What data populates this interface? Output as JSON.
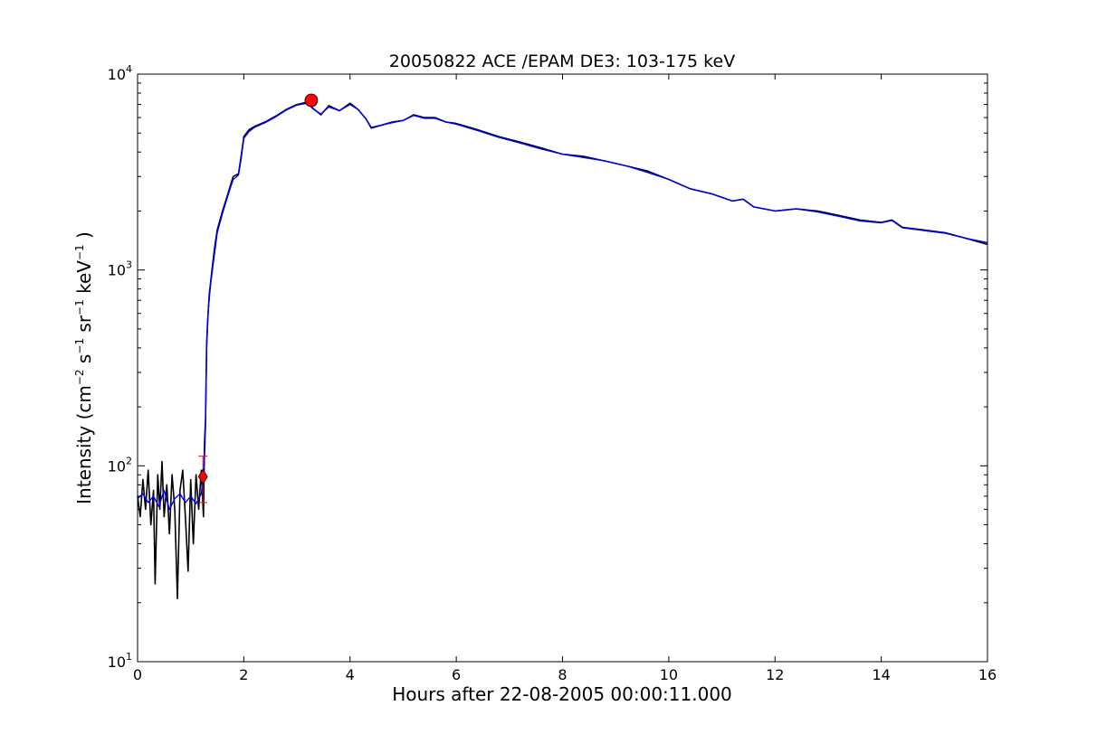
{
  "chart_data": {
    "type": "line",
    "title": "20050822 ACE /EPAM DE3: 103-175 keV",
    "xlabel": "Hours after 22-08-2005 00:00:11.000",
    "ylabel_parts": [
      "Intensity (cm",
      "−2",
      " s",
      "−1",
      " sr",
      "−1",
      " keV",
      "−1",
      " )"
    ],
    "xlim": [
      0,
      16
    ],
    "ylim": [
      10,
      10000
    ],
    "yscale": "log",
    "x_ticks": [
      "0",
      "2",
      "4",
      "6",
      "8",
      "10",
      "12",
      "14",
      "16"
    ],
    "y_ticks": [
      {
        "value": 10,
        "base": "10",
        "exp": "1"
      },
      {
        "value": 100,
        "base": "10",
        "exp": "2"
      },
      {
        "value": 1000,
        "base": "10",
        "exp": "3"
      },
      {
        "value": 10000,
        "base": "10",
        "exp": "4"
      }
    ],
    "series": [
      {
        "color": "#000000",
        "style": "raw",
        "points": [
          [
            0.0,
            70
          ],
          [
            0.05,
            55
          ],
          [
            0.1,
            85
          ],
          [
            0.15,
            60
          ],
          [
            0.2,
            95
          ],
          [
            0.25,
            50
          ],
          [
            0.3,
            75
          ],
          [
            0.33,
            25
          ],
          [
            0.38,
            90
          ],
          [
            0.42,
            60
          ],
          [
            0.46,
            105
          ],
          [
            0.5,
            55
          ],
          [
            0.55,
            80
          ],
          [
            0.6,
            45
          ],
          [
            0.65,
            90
          ],
          [
            0.7,
            60
          ],
          [
            0.75,
            21
          ],
          [
            0.8,
            75
          ],
          [
            0.85,
            95
          ],
          [
            0.9,
            55
          ],
          [
            0.95,
            29
          ],
          [
            1.0,
            85
          ],
          [
            1.05,
            40
          ],
          [
            1.1,
            90
          ],
          [
            1.15,
            60
          ],
          [
            1.2,
            95
          ],
          [
            1.24,
            55
          ],
          [
            1.26,
            130
          ],
          [
            1.28,
            175
          ],
          [
            1.3,
            420
          ],
          [
            1.32,
            560
          ],
          [
            1.35,
            750
          ],
          [
            1.4,
            1000
          ],
          [
            1.45,
            1300
          ],
          [
            1.5,
            1600
          ],
          [
            1.6,
            2000
          ],
          [
            1.7,
            2450
          ],
          [
            1.8,
            3000
          ],
          [
            1.9,
            3100
          ],
          [
            1.95,
            3800
          ],
          [
            2.0,
            4800
          ],
          [
            2.1,
            5200
          ],
          [
            2.2,
            5400
          ],
          [
            2.4,
            5700
          ],
          [
            2.6,
            6100
          ],
          [
            2.8,
            6600
          ],
          [
            3.0,
            7000
          ],
          [
            3.2,
            7200
          ],
          [
            3.3,
            6700
          ],
          [
            3.45,
            6200
          ],
          [
            3.6,
            6900
          ],
          [
            3.8,
            6500
          ],
          [
            4.0,
            7100
          ],
          [
            4.15,
            6600
          ],
          [
            4.3,
            5900
          ],
          [
            4.4,
            5300
          ],
          [
            4.6,
            5500
          ],
          [
            4.8,
            5700
          ],
          [
            5.0,
            5800
          ],
          [
            5.2,
            6200
          ],
          [
            5.4,
            6000
          ],
          [
            5.6,
            6000
          ],
          [
            5.8,
            5700
          ],
          [
            6.0,
            5600
          ],
          [
            6.4,
            5200
          ],
          [
            6.8,
            4800
          ],
          [
            7.2,
            4500
          ],
          [
            7.6,
            4200
          ],
          [
            8.0,
            3900
          ],
          [
            8.4,
            3800
          ],
          [
            8.8,
            3600
          ],
          [
            9.2,
            3400
          ],
          [
            9.6,
            3200
          ],
          [
            10.0,
            2900
          ],
          [
            10.4,
            2600
          ],
          [
            10.8,
            2450
          ],
          [
            11.2,
            2250
          ],
          [
            11.4,
            2300
          ],
          [
            11.6,
            2100
          ],
          [
            12.0,
            2000
          ],
          [
            12.4,
            2050
          ],
          [
            12.8,
            2000
          ],
          [
            13.2,
            1900
          ],
          [
            13.6,
            1800
          ],
          [
            14.0,
            1750
          ],
          [
            14.2,
            1800
          ],
          [
            14.4,
            1650
          ],
          [
            14.8,
            1600
          ],
          [
            15.2,
            1550
          ],
          [
            15.6,
            1450
          ],
          [
            16.0,
            1350
          ]
        ]
      },
      {
        "color": "#0000ff",
        "style": "smoothed",
        "points": [
          [
            0.0,
            68
          ],
          [
            0.1,
            72
          ],
          [
            0.2,
            65
          ],
          [
            0.3,
            70
          ],
          [
            0.4,
            62
          ],
          [
            0.5,
            75
          ],
          [
            0.6,
            60
          ],
          [
            0.7,
            68
          ],
          [
            0.8,
            72
          ],
          [
            0.9,
            65
          ],
          [
            1.0,
            70
          ],
          [
            1.1,
            64
          ],
          [
            1.2,
            72
          ],
          [
            1.25,
            95
          ],
          [
            1.28,
            160
          ],
          [
            1.3,
            400
          ],
          [
            1.33,
            620
          ],
          [
            1.37,
            820
          ],
          [
            1.42,
            1050
          ],
          [
            1.5,
            1550
          ],
          [
            1.6,
            1950
          ],
          [
            1.7,
            2400
          ],
          [
            1.8,
            2900
          ],
          [
            1.9,
            3050
          ],
          [
            1.95,
            3700
          ],
          [
            2.0,
            4700
          ],
          [
            2.1,
            5100
          ],
          [
            2.2,
            5350
          ],
          [
            2.4,
            5650
          ],
          [
            2.6,
            6050
          ],
          [
            2.8,
            6550
          ],
          [
            3.0,
            6950
          ],
          [
            3.2,
            7100
          ],
          [
            3.3,
            6650
          ],
          [
            3.45,
            6250
          ],
          [
            3.6,
            6800
          ],
          [
            3.8,
            6500
          ],
          [
            4.0,
            7000
          ],
          [
            4.15,
            6600
          ],
          [
            4.3,
            5900
          ],
          [
            4.4,
            5350
          ],
          [
            4.6,
            5500
          ],
          [
            4.8,
            5650
          ],
          [
            5.0,
            5800
          ],
          [
            5.2,
            6150
          ],
          [
            5.4,
            5950
          ],
          [
            5.6,
            5950
          ],
          [
            5.8,
            5700
          ],
          [
            6.0,
            5550
          ],
          [
            6.4,
            5150
          ],
          [
            6.8,
            4750
          ],
          [
            7.2,
            4450
          ],
          [
            7.6,
            4150
          ],
          [
            8.0,
            3900
          ],
          [
            8.4,
            3750
          ],
          [
            8.8,
            3600
          ],
          [
            9.2,
            3400
          ],
          [
            9.6,
            3150
          ],
          [
            10.0,
            2900
          ],
          [
            10.4,
            2600
          ],
          [
            10.8,
            2450
          ],
          [
            11.2,
            2250
          ],
          [
            11.4,
            2300
          ],
          [
            11.6,
            2100
          ],
          [
            12.0,
            2000
          ],
          [
            12.4,
            2050
          ],
          [
            12.8,
            1980
          ],
          [
            13.2,
            1880
          ],
          [
            13.6,
            1780
          ],
          [
            14.0,
            1740
          ],
          [
            14.2,
            1790
          ],
          [
            14.4,
            1640
          ],
          [
            14.8,
            1590
          ],
          [
            15.2,
            1540
          ],
          [
            15.6,
            1450
          ],
          [
            16.0,
            1380
          ]
        ]
      }
    ],
    "markers": [
      {
        "shape": "diamond",
        "x": 1.23,
        "y": 88,
        "color": "#ff0000",
        "error_low": 65,
        "error_high": 112
      },
      {
        "shape": "circle",
        "x": 3.27,
        "y": 7350,
        "color": "#ff0000"
      }
    ]
  }
}
